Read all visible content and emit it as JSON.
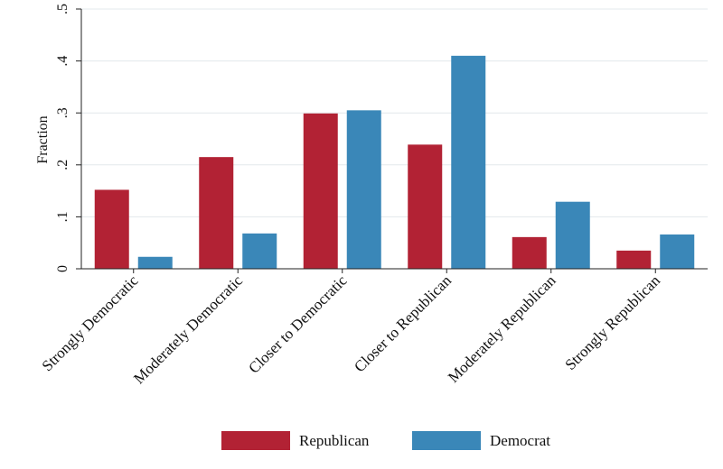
{
  "chart_data": {
    "type": "bar",
    "ylabel": "Fraction",
    "xlabel": "",
    "ylim": [
      0,
      0.5
    ],
    "yticks": [
      0,
      0.1,
      0.2,
      0.3,
      0.4,
      0.5
    ],
    "ytick_labels": [
      "0",
      ".1",
      ".2",
      ".3",
      ".4",
      ".5"
    ],
    "grid": "horizontal",
    "legend_position": "bottom",
    "categories": [
      "Strongly Democratic",
      "Moderately Democratic",
      "Closer to Democratic",
      "Closer to Republican",
      "Moderately Republican",
      "Strongly Republican"
    ],
    "series": [
      {
        "name": "Republican",
        "color": "#b22234",
        "values": [
          0.152,
          0.215,
          0.299,
          0.239,
          0.061,
          0.035
        ]
      },
      {
        "name": "Democrat",
        "color": "#3a87b8",
        "values": [
          0.023,
          0.068,
          0.305,
          0.41,
          0.129,
          0.066
        ]
      }
    ]
  }
}
